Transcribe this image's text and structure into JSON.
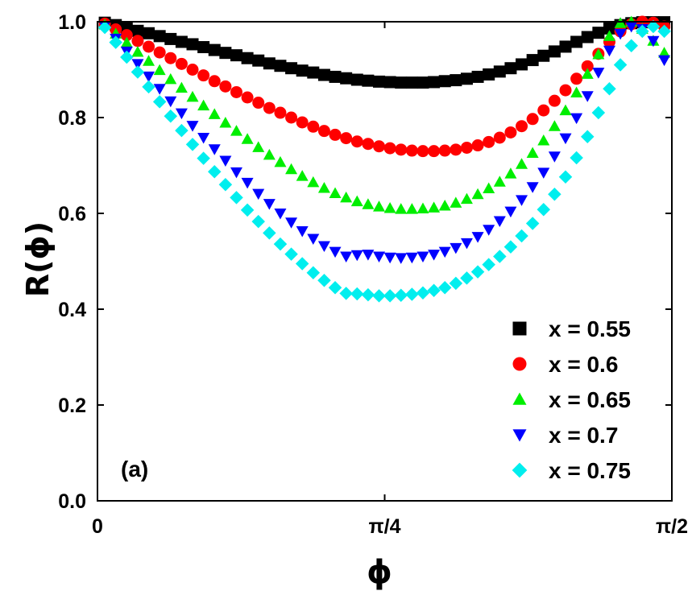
{
  "chart_data": {
    "type": "scatter",
    "title": "",
    "panel_label": "(a)",
    "xlabel": "ϕ",
    "ylabel": "R(ϕ)",
    "xlim": [
      0,
      1.5708
    ],
    "ylim": [
      0,
      1.0
    ],
    "x_ticks": [
      {
        "value": 0,
        "label": "0"
      },
      {
        "value": 0.7854,
        "label": "π/4"
      },
      {
        "value": 1.5708,
        "label": "π/2"
      }
    ],
    "y_ticks": [
      {
        "value": 0.0,
        "label": "0.0"
      },
      {
        "value": 0.2,
        "label": "0.2"
      },
      {
        "value": 0.4,
        "label": "0.4"
      },
      {
        "value": 0.6,
        "label": "0.6"
      },
      {
        "value": 0.8,
        "label": "0.8"
      },
      {
        "value": 1.0,
        "label": "1.0"
      }
    ],
    "grid": false,
    "legend_position": "bottom-right",
    "series": [
      {
        "name": "x = 0.55",
        "marker": "square",
        "color": "#000000",
        "x": [
          0.02,
          0.05,
          0.08,
          0.11,
          0.14,
          0.17,
          0.2,
          0.23,
          0.26,
          0.29,
          0.32,
          0.35,
          0.38,
          0.41,
          0.44,
          0.47,
          0.5,
          0.53,
          0.56,
          0.59,
          0.62,
          0.65,
          0.68,
          0.71,
          0.74,
          0.77,
          0.8,
          0.83,
          0.86,
          0.89,
          0.92,
          0.95,
          0.98,
          1.01,
          1.04,
          1.07,
          1.1,
          1.13,
          1.16,
          1.19,
          1.22,
          1.25,
          1.28,
          1.31,
          1.34,
          1.37,
          1.4,
          1.43,
          1.46,
          1.49,
          1.52,
          1.55
        ],
        "values": [
          0.998,
          0.993,
          0.987,
          0.981,
          0.976,
          0.97,
          0.964,
          0.958,
          0.953,
          0.947,
          0.941,
          0.935,
          0.93,
          0.924,
          0.919,
          0.913,
          0.908,
          0.903,
          0.898,
          0.894,
          0.889,
          0.885,
          0.882,
          0.879,
          0.877,
          0.875,
          0.874,
          0.873,
          0.873,
          0.873,
          0.874,
          0.876,
          0.878,
          0.881,
          0.885,
          0.89,
          0.896,
          0.903,
          0.911,
          0.92,
          0.929,
          0.938,
          0.948,
          0.958,
          0.968,
          0.977,
          0.986,
          0.993,
          0.997,
          0.999,
          0.999,
          0.999
        ]
      },
      {
        "name": "x = 0.6",
        "marker": "circle",
        "color": "#ff0000",
        "x": [
          0.02,
          0.05,
          0.08,
          0.11,
          0.14,
          0.17,
          0.2,
          0.23,
          0.26,
          0.29,
          0.32,
          0.35,
          0.38,
          0.41,
          0.44,
          0.47,
          0.5,
          0.53,
          0.56,
          0.59,
          0.62,
          0.65,
          0.68,
          0.71,
          0.74,
          0.77,
          0.8,
          0.83,
          0.86,
          0.89,
          0.92,
          0.95,
          0.98,
          1.01,
          1.04,
          1.07,
          1.1,
          1.13,
          1.16,
          1.19,
          1.22,
          1.25,
          1.28,
          1.31,
          1.34,
          1.37,
          1.4,
          1.43,
          1.46,
          1.49,
          1.52,
          1.55
        ],
        "values": [
          0.996,
          0.984,
          0.972,
          0.96,
          0.948,
          0.936,
          0.924,
          0.912,
          0.9,
          0.888,
          0.876,
          0.865,
          0.853,
          0.842,
          0.831,
          0.82,
          0.81,
          0.8,
          0.79,
          0.781,
          0.772,
          0.764,
          0.757,
          0.75,
          0.745,
          0.74,
          0.736,
          0.733,
          0.731,
          0.73,
          0.73,
          0.731,
          0.733,
          0.737,
          0.742,
          0.749,
          0.758,
          0.769,
          0.782,
          0.797,
          0.815,
          0.835,
          0.857,
          0.881,
          0.907,
          0.933,
          0.958,
          0.98,
          0.995,
          1.0,
          0.998,
          0.99
        ]
      },
      {
        "name": "x = 0.65",
        "marker": "triangle-up",
        "color": "#00ee00",
        "x": [
          0.02,
          0.05,
          0.08,
          0.11,
          0.14,
          0.17,
          0.2,
          0.23,
          0.26,
          0.29,
          0.32,
          0.35,
          0.38,
          0.41,
          0.44,
          0.47,
          0.5,
          0.53,
          0.56,
          0.59,
          0.62,
          0.65,
          0.68,
          0.71,
          0.74,
          0.77,
          0.8,
          0.83,
          0.86,
          0.89,
          0.92,
          0.95,
          0.98,
          1.01,
          1.04,
          1.07,
          1.1,
          1.13,
          1.16,
          1.19,
          1.22,
          1.25,
          1.28,
          1.31,
          1.34,
          1.37,
          1.4,
          1.43,
          1.46,
          1.49,
          1.52,
          1.55
        ],
        "values": [
          0.994,
          0.975,
          0.956,
          0.937,
          0.918,
          0.899,
          0.88,
          0.862,
          0.843,
          0.825,
          0.807,
          0.789,
          0.772,
          0.755,
          0.738,
          0.722,
          0.707,
          0.692,
          0.678,
          0.665,
          0.653,
          0.642,
          0.633,
          0.625,
          0.619,
          0.614,
          0.611,
          0.609,
          0.609,
          0.61,
          0.612,
          0.616,
          0.622,
          0.63,
          0.64,
          0.652,
          0.666,
          0.683,
          0.703,
          0.726,
          0.752,
          0.782,
          0.815,
          0.852,
          0.891,
          0.932,
          0.97,
          0.997,
          1.0,
          0.985,
          0.96,
          0.935
        ]
      },
      {
        "name": "x = 0.7",
        "marker": "triangle-down",
        "color": "#0000ff",
        "x": [
          0.02,
          0.05,
          0.08,
          0.11,
          0.14,
          0.17,
          0.2,
          0.23,
          0.26,
          0.29,
          0.32,
          0.35,
          0.38,
          0.41,
          0.44,
          0.47,
          0.5,
          0.53,
          0.56,
          0.59,
          0.62,
          0.65,
          0.68,
          0.71,
          0.74,
          0.77,
          0.8,
          0.83,
          0.86,
          0.89,
          0.92,
          0.95,
          0.98,
          1.01,
          1.04,
          1.07,
          1.1,
          1.13,
          1.16,
          1.19,
          1.22,
          1.25,
          1.28,
          1.31,
          1.34,
          1.37,
          1.4,
          1.43,
          1.46,
          1.49,
          1.52,
          1.55
        ],
        "values": [
          0.991,
          0.965,
          0.938,
          0.912,
          0.886,
          0.86,
          0.834,
          0.809,
          0.783,
          0.758,
          0.734,
          0.71,
          0.686,
          0.664,
          0.641,
          0.62,
          0.6,
          0.581,
          0.563,
          0.547,
          0.532,
          0.52,
          0.51,
          0.513,
          0.514,
          0.51,
          0.508,
          0.507,
          0.508,
          0.51,
          0.514,
          0.52,
          0.528,
          0.538,
          0.551,
          0.566,
          0.584,
          0.604,
          0.628,
          0.655,
          0.685,
          0.719,
          0.757,
          0.799,
          0.845,
          0.894,
          0.94,
          0.975,
          0.99,
          0.985,
          0.96,
          0.92
        ]
      },
      {
        "name": "x = 0.75",
        "marker": "diamond",
        "color": "#00eeee",
        "x": [
          0.02,
          0.05,
          0.08,
          0.11,
          0.14,
          0.17,
          0.2,
          0.23,
          0.26,
          0.29,
          0.32,
          0.35,
          0.38,
          0.41,
          0.44,
          0.47,
          0.5,
          0.53,
          0.56,
          0.59,
          0.62,
          0.65,
          0.68,
          0.71,
          0.74,
          0.77,
          0.8,
          0.83,
          0.86,
          0.89,
          0.92,
          0.95,
          0.98,
          1.01,
          1.04,
          1.07,
          1.1,
          1.13,
          1.16,
          1.19,
          1.22,
          1.25,
          1.28,
          1.31,
          1.34,
          1.37,
          1.4,
          1.43,
          1.46,
          1.49,
          1.52,
          1.55
        ],
        "values": [
          0.988,
          0.957,
          0.926,
          0.895,
          0.864,
          0.833,
          0.803,
          0.773,
          0.744,
          0.715,
          0.687,
          0.66,
          0.633,
          0.607,
          0.583,
          0.559,
          0.536,
          0.515,
          0.495,
          0.476,
          0.46,
          0.445,
          0.433,
          0.432,
          0.43,
          0.428,
          0.428,
          0.429,
          0.431,
          0.434,
          0.439,
          0.445,
          0.454,
          0.465,
          0.478,
          0.493,
          0.51,
          0.53,
          0.553,
          0.579,
          0.608,
          0.64,
          0.676,
          0.716,
          0.76,
          0.81,
          0.86,
          0.91,
          0.95,
          0.98,
          0.99,
          0.98
        ]
      }
    ]
  }
}
